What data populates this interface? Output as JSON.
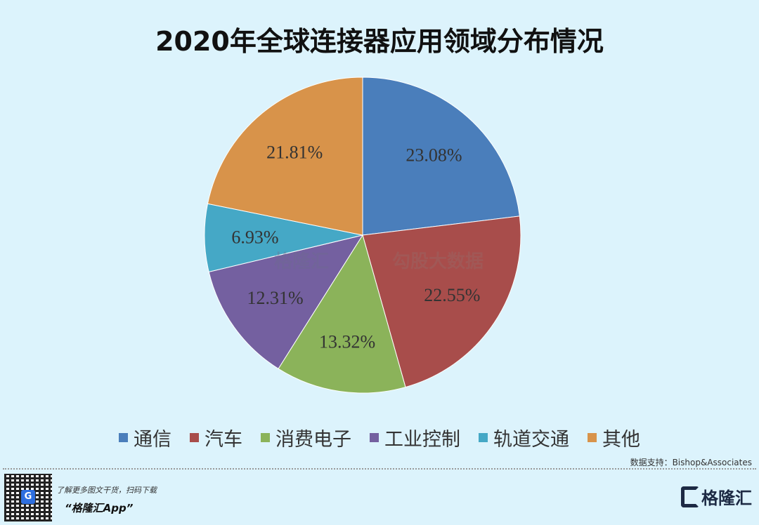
{
  "chart_data": {
    "type": "pie",
    "title": "2020年全球连接器应用领域分布情况",
    "categories": [
      "通信",
      "汽车",
      "消费电子",
      "工业控制",
      "轨道交通",
      "其他"
    ],
    "values": [
      23.08,
      22.55,
      13.32,
      12.31,
      6.93,
      21.81
    ],
    "labels": [
      "23.08%",
      "22.55%",
      "13.32%",
      "12.31%",
      "6.93%",
      "21.81%"
    ],
    "colors": [
      "#4a7ebb",
      "#a84d4b",
      "#8bb35a",
      "#7460a0",
      "#45a8c6",
      "#d8934a"
    ],
    "legend_position": "bottom"
  },
  "source": "数据支持：Bishop&Associates",
  "watermark": {
    "left": "格隆汇",
    "right": "勾股大数据"
  },
  "footer": {
    "promo_line": "了解更多图文干货，扫码下载",
    "app_name": "“格隆汇App”",
    "brand": "格隆汇"
  }
}
